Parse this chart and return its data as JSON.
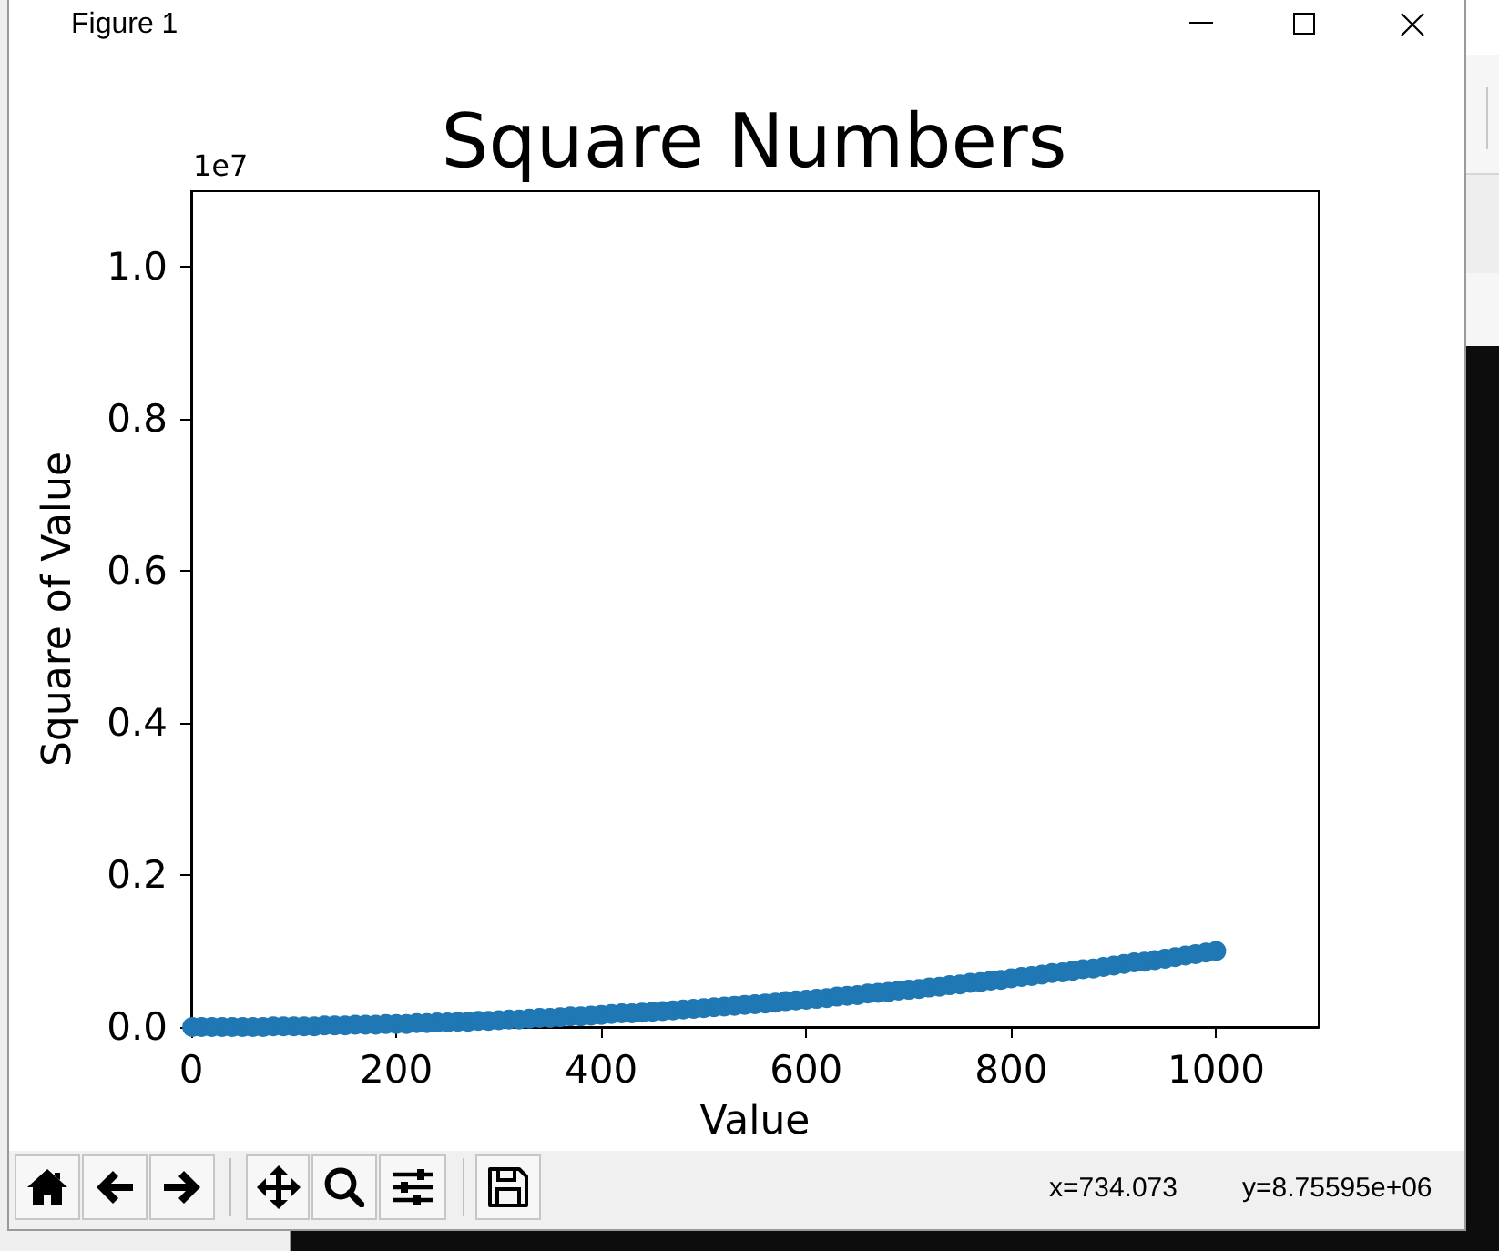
{
  "chart_data": {
    "type": "scatter",
    "title": "Square Numbers",
    "xlabel": "Value",
    "ylabel": "Square of Value",
    "x": [
      1,
      10,
      20,
      30,
      40,
      50,
      60,
      70,
      80,
      90,
      100,
      110,
      120,
      130,
      140,
      150,
      160,
      170,
      180,
      190,
      200,
      210,
      220,
      230,
      240,
      250,
      260,
      270,
      280,
      290,
      300,
      310,
      320,
      330,
      340,
      350,
      360,
      370,
      380,
      390,
      400,
      410,
      420,
      430,
      440,
      450,
      460,
      470,
      480,
      490,
      500,
      510,
      520,
      530,
      540,
      550,
      560,
      570,
      580,
      590,
      600,
      610,
      620,
      630,
      640,
      650,
      660,
      670,
      680,
      690,
      700,
      710,
      720,
      730,
      740,
      750,
      760,
      770,
      780,
      790,
      800,
      810,
      820,
      830,
      840,
      850,
      860,
      870,
      880,
      890,
      900,
      910,
      920,
      930,
      940,
      950,
      960,
      970,
      980,
      990,
      1000
    ],
    "values": [
      0,
      0,
      0,
      0,
      0,
      0,
      0,
      0,
      0.001,
      0.001,
      0.001,
      0.001,
      0.001,
      0.002,
      0.002,
      0.002,
      0.003,
      0.003,
      0.003,
      0.004,
      0.004,
      0.004,
      0.005,
      0.005,
      0.006,
      0.006,
      0.007,
      0.007,
      0.008,
      0.008,
      0.009,
      0.01,
      0.01,
      0.011,
      0.012,
      0.012,
      0.013,
      0.014,
      0.014,
      0.015,
      0.016,
      0.017,
      0.018,
      0.018,
      0.019,
      0.02,
      0.021,
      0.022,
      0.023,
      0.024,
      0.025,
      0.026,
      0.027,
      0.028,
      0.029,
      0.03,
      0.031,
      0.032,
      0.034,
      0.035,
      0.036,
      0.037,
      0.038,
      0.04,
      0.041,
      0.042,
      0.044,
      0.045,
      0.046,
      0.048,
      0.049,
      0.05,
      0.052,
      0.053,
      0.055,
      0.056,
      0.058,
      0.059,
      0.061,
      0.062,
      0.064,
      0.066,
      0.067,
      0.069,
      0.071,
      0.072,
      0.074,
      0.076,
      0.077,
      0.079,
      0.081,
      0.083,
      0.085,
      0.086,
      0.088,
      0.09,
      0.092,
      0.094,
      0.096,
      0.098,
      0.1
    ],
    "color": "#1f77b4",
    "marker": "circle",
    "xlim": [
      0,
      1100
    ],
    "xticks": [
      0,
      200,
      400,
      600,
      800,
      1000
    ],
    "ylim": [
      0,
      1.1
    ],
    "yticks": [
      {
        "value": 0,
        "label": "0.0"
      },
      0.2,
      0.4,
      0.6,
      0.8,
      {
        "value": 1,
        "label": "1.0"
      }
    ],
    "annotations": [
      "1e7",
      "Figure 1",
      "x=734.073",
      "y=8.75595e+06"
    ]
  }
}
